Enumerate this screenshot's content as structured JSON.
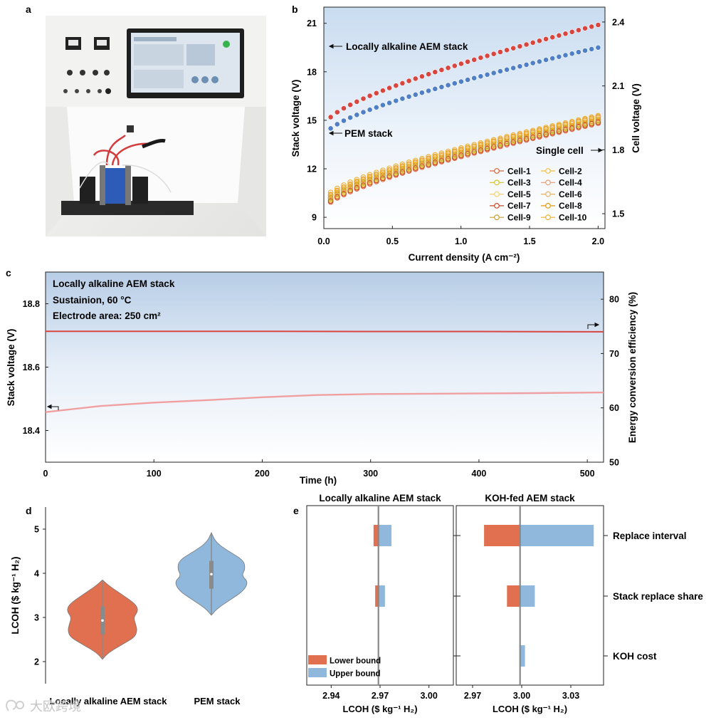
{
  "panels": {
    "a": "a",
    "b": "b",
    "c": "c",
    "d": "d",
    "e": "e"
  },
  "photo": {
    "description_icons": [
      "touchscreen-monitor-icon",
      "controller-box-icon",
      "electrolyzer-stack-icon"
    ]
  },
  "chart_data": [
    {
      "id": "b",
      "type": "scatter",
      "xlabel": "Current density (A cm⁻²)",
      "ylabel": "Stack voltage (V)",
      "y2label": "Cell voltage (V)",
      "xlim": [
        0,
        2.05
      ],
      "ylim": [
        8.3,
        22.0
      ],
      "y2lim": [
        1.43,
        2.47
      ],
      "xticks": [
        "0.0",
        "0.5",
        "1.0",
        "1.5",
        "2.0"
      ],
      "yticks": [
        "9",
        "12",
        "15",
        "18",
        "21"
      ],
      "y2ticks": [
        "1.5",
        "1.8",
        "2.1",
        "2.4"
      ],
      "annotations": {
        "alk": "Locally alkaline AEM stack",
        "pem": "PEM stack",
        "single": "Single cell"
      },
      "series": [
        {
          "name": "Locally alkaline AEM stack",
          "axis": "left",
          "color": "#d9453f",
          "x_start": 0.05,
          "x_end": 2.0,
          "n": 42,
          "y_start": 15.2,
          "y_end": 20.9,
          "shape": "sqrt"
        },
        {
          "name": "PEM stack",
          "axis": "left",
          "color": "#4f7fc4",
          "x_start": 0.05,
          "x_end": 2.0,
          "n": 42,
          "y_start": 14.5,
          "y_end": 19.5,
          "shape": "sqrt"
        }
      ],
      "cells": {
        "legend": [
          "Cell-1",
          "Cell-2",
          "Cell-3",
          "Cell-4",
          "Cell-5",
          "Cell-6",
          "Cell-7",
          "Cell-8",
          "Cell-9",
          "Cell-10"
        ],
        "colors": [
          "#e0623a",
          "#f0c040",
          "#d8c020",
          "#e89a70",
          "#f5d070",
          "#e8b060",
          "#c84a28",
          "#e89a10",
          "#c8a030",
          "#f0b030"
        ],
        "axis": "right",
        "x_start": 0.05,
        "x_end": 2.0,
        "n": 42,
        "y_start": [
          1.555,
          1.565,
          1.57,
          1.575,
          1.58,
          1.585,
          1.56,
          1.59,
          1.575,
          1.6
        ],
        "y_end": [
          1.925,
          1.93,
          1.935,
          1.94,
          1.945,
          1.95,
          1.93,
          1.955,
          1.94,
          1.96
        ]
      }
    },
    {
      "id": "c",
      "type": "line",
      "xlabel": "Time (h)",
      "ylabel": "Stack voltage (V)",
      "y2label": "Energy conversion efficiency (%)",
      "xlim": [
        0,
        515
      ],
      "ylim": [
        18.3,
        18.9
      ],
      "y2lim": [
        50,
        85
      ],
      "xticks": [
        "0",
        "100",
        "200",
        "300",
        "400",
        "500"
      ],
      "yticks": [
        "18.4",
        "18.6",
        "18.8"
      ],
      "y2ticks": [
        "50",
        "60",
        "70",
        "80"
      ],
      "info": [
        "Locally alkaline AEM stack",
        "Sustainion, 60 °C",
        "Electrode area: 250 cm²"
      ],
      "series": [
        {
          "name": "Stack voltage",
          "axis": "left",
          "color": "#f0a0a0",
          "points": [
            [
              0,
              18.458
            ],
            [
              50,
              18.477
            ],
            [
              100,
              18.488
            ],
            [
              150,
              18.496
            ],
            [
              200,
              18.505
            ],
            [
              250,
              18.512
            ],
            [
              300,
              18.515
            ],
            [
              350,
              18.516
            ],
            [
              400,
              18.517
            ],
            [
              450,
              18.518
            ],
            [
              515,
              18.52
            ]
          ]
        },
        {
          "name": "Energy conversion efficiency",
          "axis": "right",
          "color": "#d9453f",
          "points": [
            [
              0,
              74.1
            ],
            [
              100,
              74.1
            ],
            [
              200,
              74.1
            ],
            [
              300,
              74.05
            ],
            [
              400,
              74.05
            ],
            [
              515,
              74.0
            ]
          ]
        }
      ]
    },
    {
      "id": "d",
      "type": "violin",
      "ylabel": "LCOH ($ kg⁻¹ H₂)",
      "ylim": [
        1.5,
        5.5
      ],
      "yticks": [
        "2",
        "3",
        "4",
        "5"
      ],
      "categories": [
        "Locally alkaline AEM stack",
        "PEM stack"
      ],
      "colors": [
        "#e07050",
        "#8fb8dc"
      ],
      "stats": [
        {
          "min": 2.05,
          "max": 3.85,
          "q1": 2.62,
          "median": 2.93,
          "q3": 3.25,
          "widths": [
            [
              2.05,
              0.0
            ],
            [
              2.2,
              0.15
            ],
            [
              2.4,
              0.55
            ],
            [
              2.55,
              0.85
            ],
            [
              2.7,
              0.92
            ],
            [
              2.85,
              0.88
            ],
            [
              3.0,
              0.82
            ],
            [
              3.15,
              0.95
            ],
            [
              3.3,
              0.88
            ],
            [
              3.5,
              0.55
            ],
            [
              3.7,
              0.2
            ],
            [
              3.85,
              0.0
            ]
          ]
        },
        {
          "min": 3.05,
          "max": 4.92,
          "q1": 3.65,
          "median": 3.98,
          "q3": 4.28,
          "widths": [
            [
              3.05,
              0.0
            ],
            [
              3.2,
              0.15
            ],
            [
              3.4,
              0.5
            ],
            [
              3.6,
              0.85
            ],
            [
              3.8,
              0.98
            ],
            [
              3.95,
              0.8
            ],
            [
              4.1,
              0.9
            ],
            [
              4.3,
              0.85
            ],
            [
              4.5,
              0.45
            ],
            [
              4.7,
              0.12
            ],
            [
              4.92,
              0.0
            ]
          ]
        }
      ]
    },
    {
      "id": "e",
      "type": "bar",
      "orientation": "horizontal",
      "xlabel": "LCOH ($ kg⁻¹ H₂)",
      "categories": [
        "Replace interval",
        "Stack replace share",
        "KOH cost"
      ],
      "legend": [
        "Lower bound",
        "Upper bound"
      ],
      "colors": {
        "lower": "#e07050",
        "upper": "#8fb8dc"
      },
      "panels": [
        {
          "title": "Locally alkaline AEM stack",
          "baseline": 2.969,
          "xlim": [
            2.925,
            3.015
          ],
          "xticks": [
            "2.94",
            "2.97",
            "3.00"
          ],
          "bars": [
            {
              "lower": 2.966,
              "upper": 2.977
            },
            {
              "lower": 2.967,
              "upper": 2.973
            },
            {
              "lower": null,
              "upper": null
            }
          ]
        },
        {
          "title": "KOH-fed AEM stack",
          "baseline": 2.999,
          "xlim": [
            2.96,
            3.05
          ],
          "xticks": [
            "2.97",
            "3.00",
            "3.03"
          ],
          "bars": [
            {
              "lower": 2.977,
              "upper": 3.044
            },
            {
              "lower": 2.991,
              "upper": 3.008
            },
            {
              "lower": 3.0,
              "upper": 3.002
            }
          ]
        }
      ]
    }
  ],
  "watermark": "大欧跨境"
}
